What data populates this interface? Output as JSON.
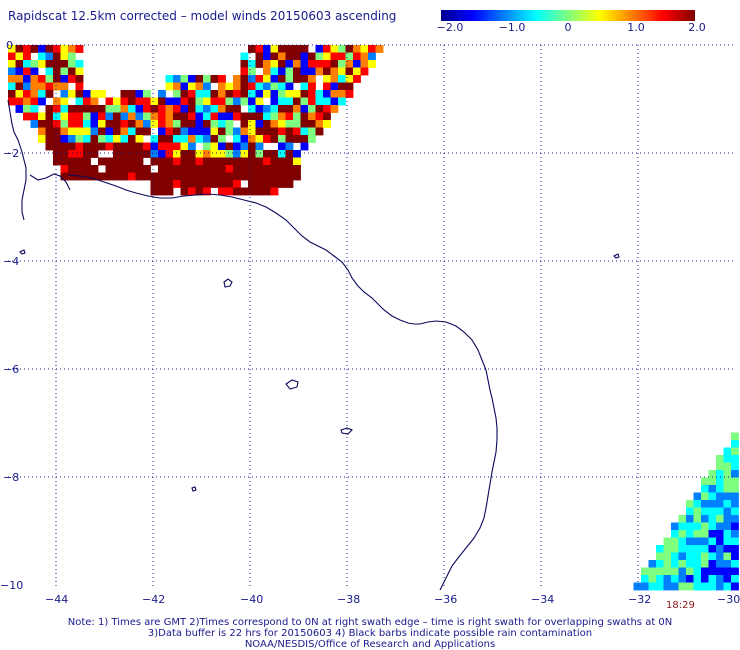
{
  "title": "Rapidscat 12.5km corrected – model winds 20150603 ascending",
  "colorbar": {
    "ticks": [
      "−2.0",
      "−1.0",
      "0",
      "1.0",
      "2.0"
    ],
    "range": [
      -2.0,
      2.0
    ],
    "colors": [
      "#00008f",
      "#0000ff",
      "#0080ff",
      "#00ffff",
      "#7fff7f",
      "#ffff00",
      "#ff8000",
      "#ff0000",
      "#800000"
    ]
  },
  "map": {
    "x_ticks": [
      "−44",
      "−42",
      "−40",
      "−38",
      "−36",
      "−34",
      "−32",
      "−30"
    ],
    "y_ticks": [
      "0",
      "−2",
      "−4",
      "−6",
      "−8",
      "−10"
    ],
    "lon_range": [
      -44.8,
      -30.0
    ],
    "lat_range": [
      -10.0,
      0.0
    ],
    "grid": true,
    "grid_color": "#1a1a8c",
    "coast_color": "#0a0a5c"
  },
  "swath_time": "18:29",
  "notes": [
    "Note: 1) Times are GMT 2)Times correspond to 0N at right swath edge – time is right swath for overlapping swaths at 0N",
    "3)Data buffer is 22 hrs for 20150603 4) Black barbs indicate possible rain contamination",
    "NOAA/NESDIS/Office of Research and Applications"
  ]
}
